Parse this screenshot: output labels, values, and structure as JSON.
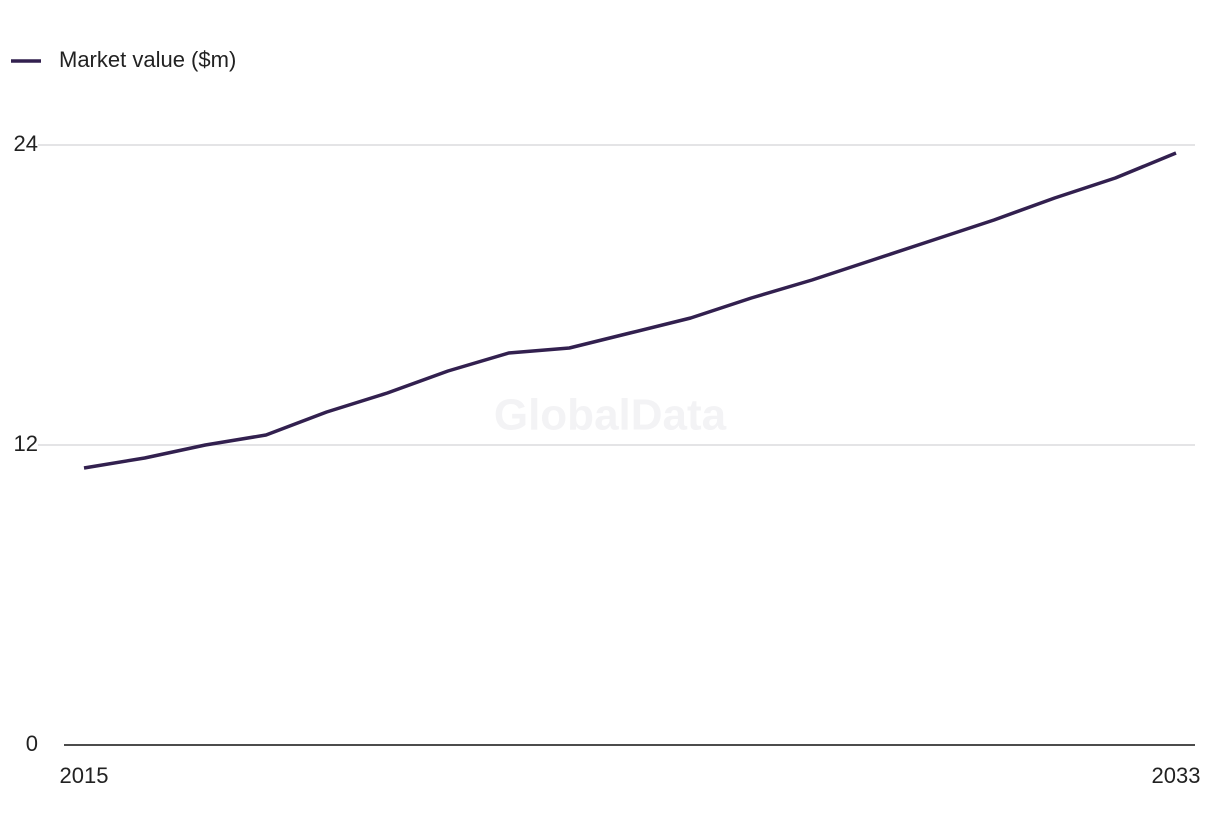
{
  "chart_data": {
    "type": "line",
    "watermark": "GlobalData",
    "x": [
      2015,
      2016,
      2017,
      2018,
      2019,
      2020,
      2021,
      2022,
      2023,
      2024,
      2025,
      2026,
      2027,
      2028,
      2029,
      2030,
      2031,
      2032,
      2033
    ],
    "series": [
      {
        "name": "Market value ($m)",
        "color": "#32204f",
        "values": [
          11.08,
          11.48,
          12.0,
          12.4,
          13.32,
          14.08,
          14.96,
          15.68,
          15.88,
          16.48,
          17.08,
          17.88,
          18.6,
          19.4,
          20.2,
          21.0,
          21.88,
          22.68,
          23.68
        ]
      }
    ],
    "xlim": [
      2015,
      2033
    ],
    "xticks": [
      2015,
      2033
    ],
    "ylim": [
      0,
      24
    ],
    "yticks": [
      0,
      12,
      24
    ],
    "grid": true,
    "legend": "top-left"
  }
}
